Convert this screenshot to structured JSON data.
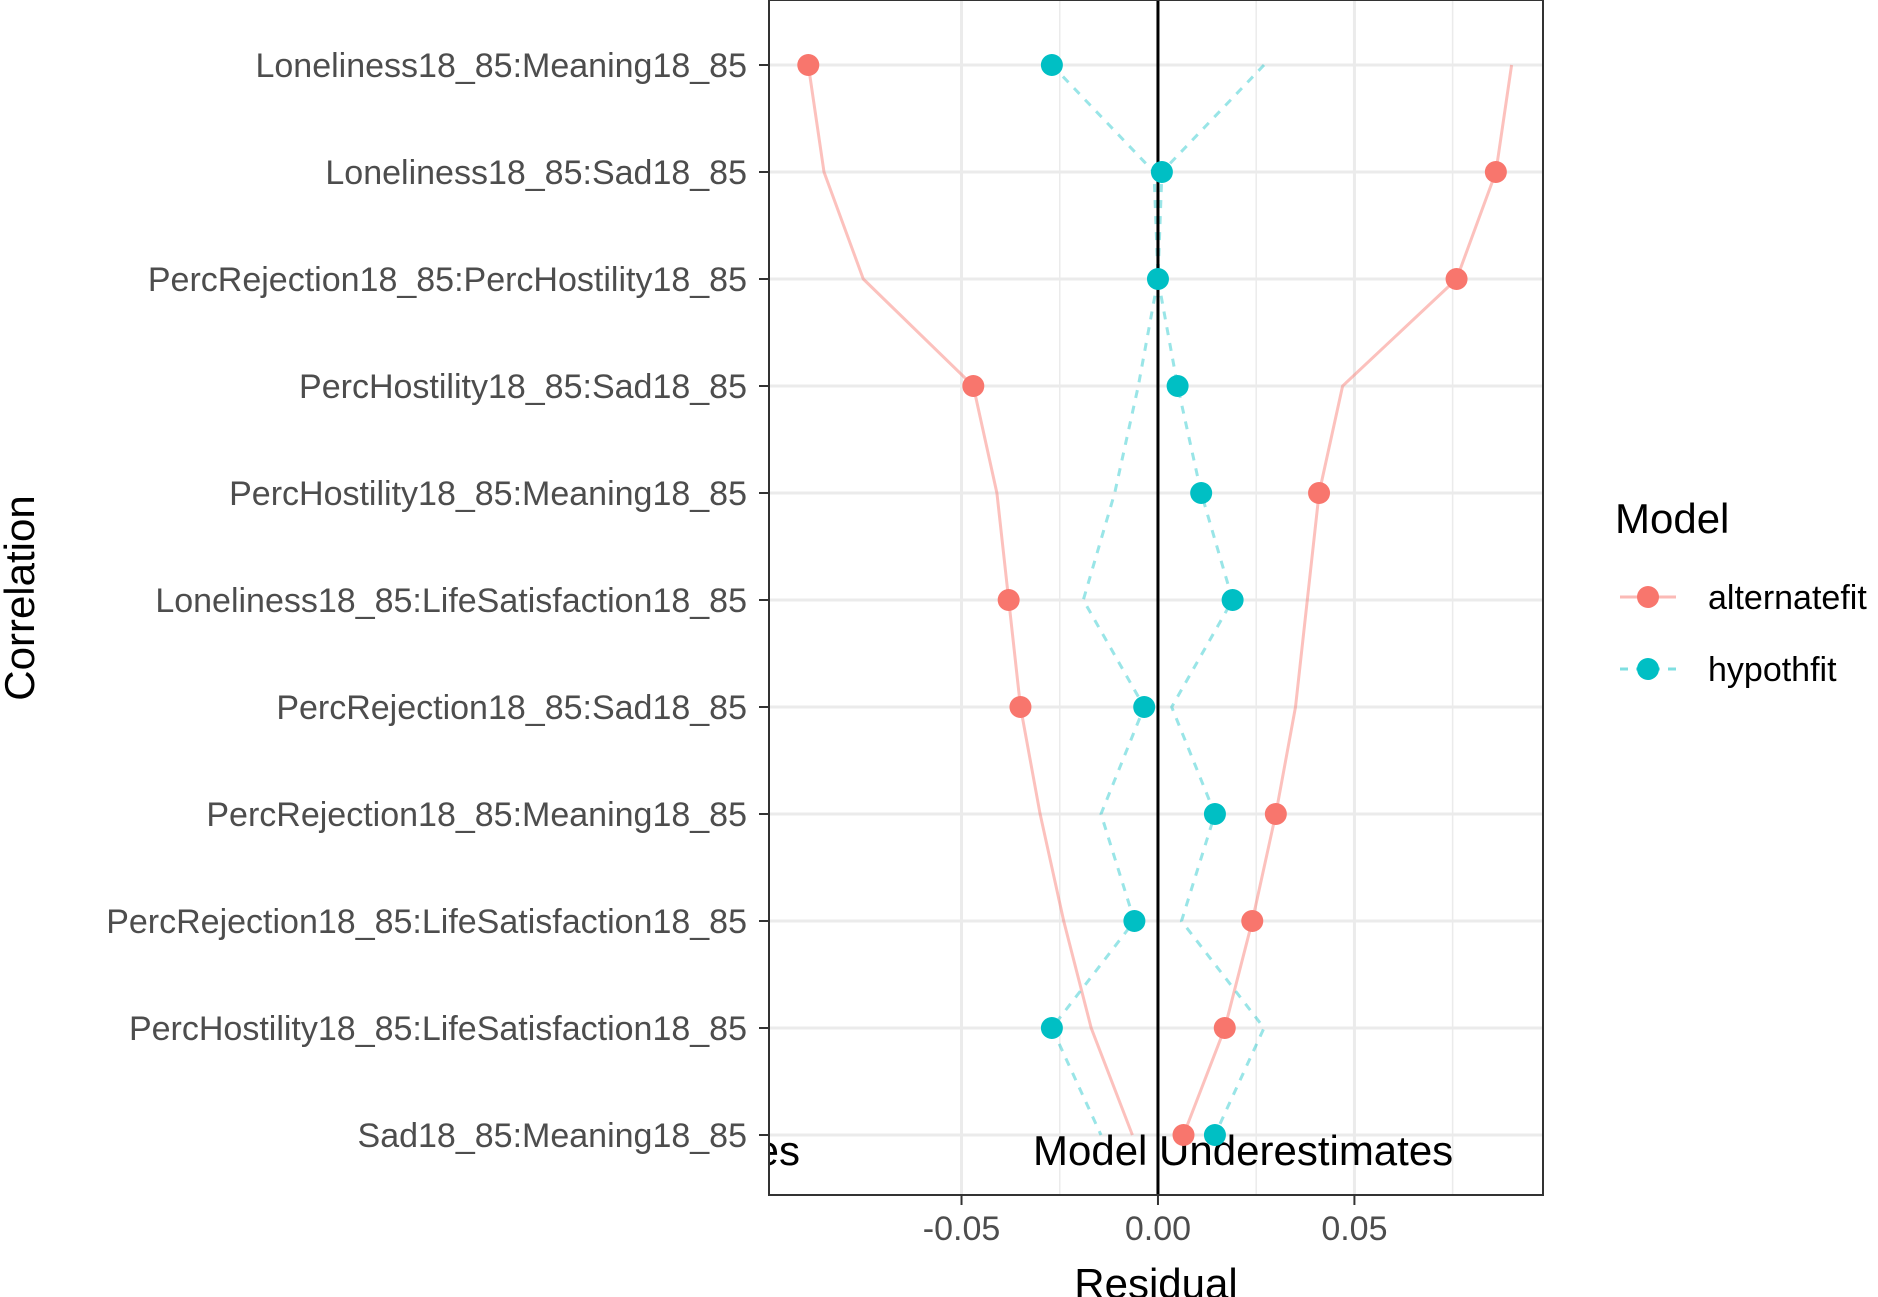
{
  "chart_data": {
    "type": "scatter",
    "xlabel": "Residual",
    "ylabel": "Correlation",
    "xlim": [
      -0.099,
      0.098
    ],
    "x_ticks": [
      {
        "value": -0.05,
        "label": "-0.05"
      },
      {
        "value": 0.0,
        "label": "0.00"
      },
      {
        "value": 0.05,
        "label": "0.05"
      }
    ],
    "grid": true,
    "categories": [
      "Loneliness18_85:Meaning18_85",
      "Loneliness18_85:Sad18_85",
      "PercRejection18_85:PercHostility18_85",
      "PercHostility18_85:Sad18_85",
      "PercHostility18_85:Meaning18_85",
      "Loneliness18_85:LifeSatisfaction18_85",
      "PercRejection18_85:Sad18_85",
      "PercRejection18_85:Meaning18_85",
      "PercRejection18_85:LifeSatisfaction18_85",
      "PercHostility18_85:LifeSatisfaction18_85",
      "Sad18_85:Meaning18_85"
    ],
    "series": [
      {
        "name": "alternatefit",
        "color": "#F8766D",
        "line_style": "solid",
        "values": [
          -0.089,
          0.086,
          0.076,
          -0.047,
          0.041,
          -0.038,
          -0.035,
          0.03,
          0.024,
          0.017,
          0.0065
        ],
        "envelope": {
          "left": [
            -0.089,
            -0.085,
            -0.075,
            -0.047,
            -0.041,
            -0.038,
            -0.035,
            -0.03,
            -0.024,
            -0.017,
            -0.0065
          ],
          "right": [
            0.09,
            0.086,
            0.076,
            0.047,
            0.041,
            0.038,
            0.035,
            0.03,
            0.024,
            0.017,
            0.0065
          ]
        }
      },
      {
        "name": "hypothfit",
        "color": "#00BFC4",
        "line_style": "dashed",
        "values": [
          -0.027,
          0.001,
          0.0,
          0.005,
          0.011,
          0.019,
          -0.0035,
          0.0145,
          -0.006,
          -0.027,
          0.0145
        ],
        "envelope": {
          "left": [
            -0.027,
            -0.001,
            0.0,
            -0.005,
            -0.011,
            -0.019,
            -0.0035,
            -0.0145,
            -0.006,
            -0.027,
            -0.0145
          ],
          "right": [
            0.027,
            0.001,
            0.0,
            0.005,
            0.011,
            0.019,
            0.0035,
            0.0145,
            0.006,
            0.027,
            0.0145
          ]
        }
      }
    ],
    "annotations": [
      {
        "text": "Model Overestimates",
        "x": -0.095,
        "align": "start"
      },
      {
        "text": "Model Underestimates",
        "x": 0.0,
        "align": "start"
      }
    ],
    "vline": 0.0,
    "legend": {
      "title": "Model",
      "placement": "right"
    }
  }
}
